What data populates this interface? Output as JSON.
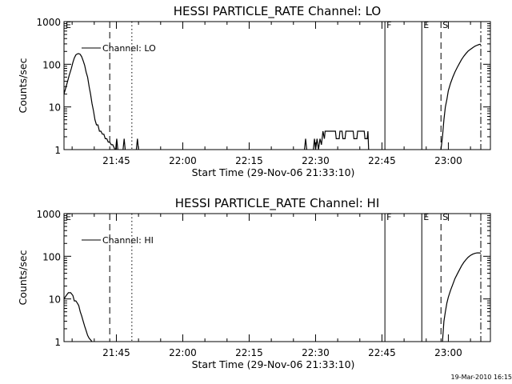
{
  "chart_data": [
    {
      "type": "line",
      "title": "HESSI PARTICLE_RATE Channel: LO",
      "xlabel": "Start Time (29-Nov-06 21:33:10)",
      "ylabel": "Counts/sec",
      "yscale": "log",
      "ylim": [
        1,
        1000
      ],
      "xlim": [
        "21:33:10",
        "23:09:30"
      ],
      "x_ticks": [
        "21:45",
        "22:00",
        "22:15",
        "22:30",
        "22:45",
        "23:00"
      ],
      "y_ticks": [
        "1",
        "10",
        "100",
        "1000"
      ],
      "legend": "Channel: LO",
      "legend_position": "top-left",
      "event_lines": [
        {
          "label": "E",
          "time": "21:33:10",
          "style": "solid"
        },
        {
          "label": "",
          "time": "21:43:30",
          "style": "dashed"
        },
        {
          "label": "",
          "time": "21:48:30",
          "style": "dotted"
        },
        {
          "label": "F",
          "time": "22:45:40",
          "style": "solid"
        },
        {
          "label": "E",
          "time": "22:54:00",
          "style": "solid"
        },
        {
          "label": "S",
          "time": "22:58:20",
          "style": "dashed"
        },
        {
          "label": "",
          "time": "23:07:20",
          "style": "dashdot"
        }
      ],
      "segments": [
        {
          "x": [
            "21:33:10",
            "21:33:50",
            "21:34:20",
            "21:34:50",
            "21:35:10",
            "21:35:30",
            "21:35:50",
            "21:36:10",
            "21:36:30",
            "21:36:50",
            "21:37:10",
            "21:37:30",
            "21:37:50",
            "21:38:10",
            "21:38:30",
            "21:38:50",
            "21:39:10",
            "21:39:30",
            "21:39:50",
            "21:40:10",
            "21:40:30",
            "21:40:50",
            "21:41:10",
            "21:41:30",
            "21:41:50",
            "21:42:10",
            "21:42:30",
            "21:42:50",
            "21:43:10",
            "21:43:30",
            "21:43:50",
            "21:44:10",
            "21:44:30",
            "21:44:40"
          ],
          "y": [
            20,
            35,
            55,
            80,
            110,
            140,
            165,
            175,
            178,
            170,
            150,
            120,
            95,
            65,
            50,
            30,
            20,
            12,
            8,
            5,
            3.8,
            3.8,
            2.7,
            2.7,
            2.3,
            2.3,
            1.8,
            1.8,
            1.5,
            1.5,
            1.3,
            1.3,
            1.1,
            1
          ]
        },
        {
          "x": [
            "21:44:50",
            "21:45:05",
            "21:45:20"
          ],
          "y": [
            1,
            1.8,
            1
          ]
        },
        {
          "x": [
            "21:46:30",
            "21:46:45",
            "21:47:00"
          ],
          "y": [
            1,
            1.8,
            1
          ]
        },
        {
          "x": [
            "21:49:30",
            "21:49:45",
            "21:50:00"
          ],
          "y": [
            1,
            1.8,
            1
          ]
        },
        {
          "x": [
            "22:27:30",
            "22:27:45",
            "22:28:00"
          ],
          "y": [
            1,
            1.8,
            1
          ]
        },
        {
          "x": [
            "22:29:30",
            "22:29:45",
            "22:30:00",
            "22:30:20",
            "22:30:40",
            "22:31:00",
            "22:31:20",
            "22:31:40",
            "22:32:00"
          ],
          "y": [
            1,
            1.8,
            1,
            1.8,
            1,
            1.8,
            1.3,
            2.7,
            1.8
          ]
        },
        {
          "x": [
            "22:32:00",
            "22:32:10",
            "22:34:30",
            "22:34:40",
            "22:35:20",
            "22:35:30",
            "22:36:00",
            "22:36:10",
            "22:36:40",
            "22:36:50",
            "22:38:30",
            "22:38:40",
            "22:39:20",
            "22:39:30",
            "22:41:00",
            "22:41:10",
            "22:41:40",
            "22:41:50",
            "22:42:00"
          ],
          "y": [
            1.8,
            2.7,
            2.7,
            1.8,
            1.8,
            2.7,
            2.7,
            1.8,
            1.8,
            2.7,
            2.7,
            1.8,
            1.8,
            2.7,
            2.7,
            1.8,
            1.8,
            2.7,
            1
          ]
        },
        {
          "x": [
            "22:58:20",
            "22:58:40",
            "22:59:00",
            "22:59:20",
            "22:59:40",
            "23:00:00",
            "23:00:30",
            "23:01:00",
            "23:01:30",
            "23:02:00",
            "23:02:30",
            "23:03:00",
            "23:03:30",
            "23:04:00",
            "23:04:30",
            "23:05:00",
            "23:05:30",
            "23:06:00",
            "23:06:30",
            "23:07:00",
            "23:07:20"
          ],
          "y": [
            1,
            2,
            5,
            10,
            15,
            24,
            36,
            50,
            66,
            84,
            105,
            130,
            155,
            180,
            205,
            225,
            245,
            265,
            280,
            292,
            295
          ]
        }
      ]
    },
    {
      "type": "line",
      "title": "HESSI PARTICLE_RATE Channel: HI",
      "xlabel": "Start Time (29-Nov-06 21:33:10)",
      "ylabel": "Counts/sec",
      "yscale": "log",
      "ylim": [
        1,
        1000
      ],
      "xlim": [
        "21:33:10",
        "23:09:30"
      ],
      "x_ticks": [
        "21:45",
        "22:00",
        "22:15",
        "22:30",
        "22:45",
        "23:00"
      ],
      "y_ticks": [
        "1",
        "10",
        "100",
        "1000"
      ],
      "legend": "Channel: HI",
      "legend_position": "top-left",
      "event_lines": [
        {
          "label": "E",
          "time": "21:33:10",
          "style": "solid"
        },
        {
          "label": "",
          "time": "21:43:30",
          "style": "dashed"
        },
        {
          "label": "",
          "time": "21:48:30",
          "style": "dotted"
        },
        {
          "label": "F",
          "time": "22:45:40",
          "style": "solid"
        },
        {
          "label": "E",
          "time": "22:54:00",
          "style": "solid"
        },
        {
          "label": "S",
          "time": "22:58:20",
          "style": "dashed"
        },
        {
          "label": "",
          "time": "23:07:20",
          "style": "dashdot"
        }
      ],
      "segments": [
        {
          "x": [
            "21:33:10",
            "21:33:40",
            "21:34:10",
            "21:34:40",
            "21:35:10",
            "21:35:30",
            "21:35:50",
            "21:36:10",
            "21:36:30",
            "21:36:50",
            "21:37:10",
            "21:37:30",
            "21:37:50",
            "21:38:10",
            "21:38:30",
            "21:38:50",
            "21:39:10",
            "21:39:30"
          ],
          "y": [
            10,
            12,
            14,
            14,
            12,
            9,
            9,
            8,
            7,
            5,
            4,
            3,
            2.3,
            1.8,
            1.4,
            1.2,
            1.1,
            1
          ]
        },
        {
          "x": [
            "22:58:40",
            "22:59:00",
            "22:59:20",
            "22:59:40",
            "23:00:00",
            "23:00:30",
            "23:01:00",
            "23:01:30",
            "23:02:00",
            "23:02:30",
            "23:03:00",
            "23:03:30",
            "23:04:00",
            "23:04:30",
            "23:05:00",
            "23:05:30",
            "23:06:00",
            "23:06:30",
            "23:07:00",
            "23:07:20"
          ],
          "y": [
            1,
            3,
            5,
            8,
            11,
            16,
            22,
            30,
            38,
            48,
            60,
            72,
            84,
            95,
            105,
            112,
            117,
            120,
            120,
            118
          ]
        }
      ]
    }
  ],
  "timestamp": "19-Mar-2010 16:15"
}
